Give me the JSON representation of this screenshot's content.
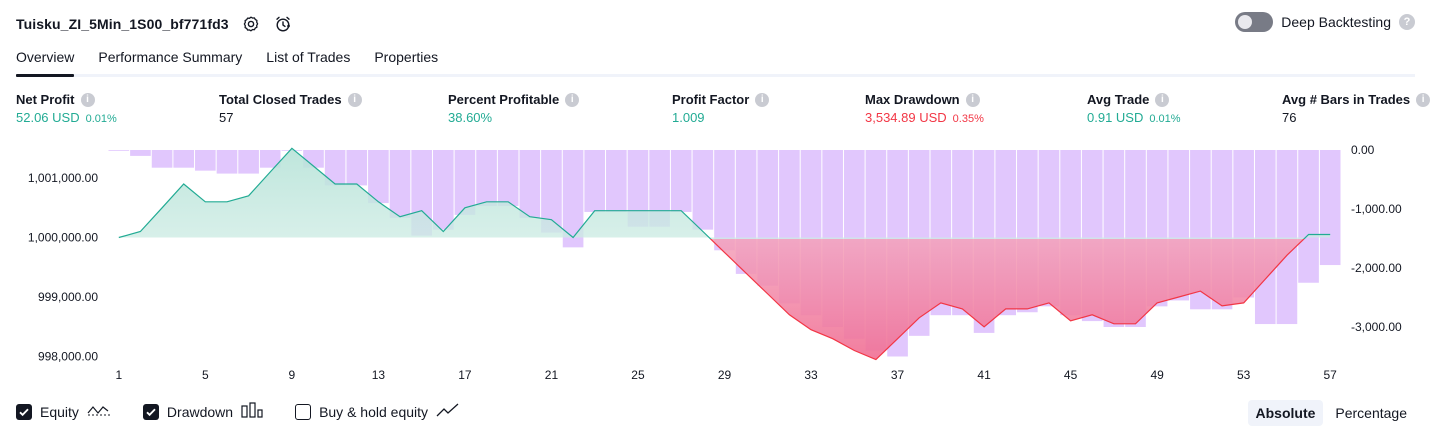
{
  "header": {
    "strategy_name": "Tuisku_ZI_5Min_1S00_bf771fd3",
    "settings_icon": "gear-icon",
    "alert_icon": "alarm-clock-icon"
  },
  "deep_backtesting": {
    "label": "Deep Backtesting",
    "enabled": false,
    "help": "?"
  },
  "tabs": [
    {
      "label": "Overview",
      "active": true
    },
    {
      "label": "Performance Summary",
      "active": false
    },
    {
      "label": "List of Trades",
      "active": false
    },
    {
      "label": "Properties",
      "active": false
    }
  ],
  "stats": {
    "net_profit": {
      "label": "Net Profit",
      "value": "52.06 USD",
      "pct": "0.01%"
    },
    "total_closed_trades": {
      "label": "Total Closed Trades",
      "value": "57"
    },
    "percent_profitable": {
      "label": "Percent Profitable",
      "value": "38.60%"
    },
    "profit_factor": {
      "label": "Profit Factor",
      "value": "1.009"
    },
    "max_drawdown": {
      "label": "Max Drawdown",
      "value": "3,534.89 USD",
      "pct": "0.35%"
    },
    "avg_trade": {
      "label": "Avg Trade",
      "value": "0.91 USD",
      "pct": "0.01%"
    },
    "avg_bars": {
      "label": "Avg # Bars in Trades",
      "value": "76"
    }
  },
  "colors": {
    "profit_green": "#22ab94",
    "loss_red": "#f23645",
    "drawdown_bar": "#e1c7fd",
    "equity_fill_up": "#d8efe9",
    "equity_fill_down": "#f28ca8"
  },
  "chart_data": {
    "type": "area",
    "x_tick_labels": [
      "1",
      "5",
      "9",
      "13",
      "17",
      "21",
      "25",
      "29",
      "33",
      "37",
      "41",
      "45",
      "49",
      "53",
      "57"
    ],
    "left_axis": {
      "ticks": [
        "1,001,000.00",
        "1,000,000.00",
        "999,000.00",
        "998,000.00"
      ],
      "ylim": [
        997750,
        1001500
      ]
    },
    "right_axis": {
      "ticks": [
        "0.00",
        "-1,000.00",
        "-2,000.00",
        "-3,000.00"
      ],
      "ylim": [
        -3550,
        0
      ]
    },
    "series": [
      {
        "key": "equity",
        "values": [
          1000000,
          1000100,
          1000500,
          1000900,
          1000600,
          1000600,
          1000700,
          1001100,
          1001500,
          1001200,
          1000900,
          1000900,
          1000600,
          1000350,
          1000450,
          1000100,
          1000500,
          1000600,
          1000600,
          1000350,
          1000300,
          1000000,
          1000450,
          1000450,
          1000450,
          1000450,
          1000450,
          1000100,
          999750,
          999400,
          999050,
          998700,
          998450,
          998300,
          998100,
          997950,
          998300,
          998650,
          998900,
          998800,
          998500,
          998800,
          998800,
          998900,
          998600,
          998700,
          998550,
          998550,
          998900,
          999000,
          999100,
          998850,
          998900,
          999300,
          999700,
          1000050,
          1000050
        ]
      },
      {
        "key": "drawdown",
        "values": [
          0,
          -100,
          -300,
          -300,
          -350,
          -400,
          -400,
          -300,
          0,
          -300,
          -600,
          -600,
          -900,
          -1150,
          -1450,
          -1350,
          -1100,
          -950,
          -950,
          -1150,
          -1400,
          -1650,
          -1050,
          -1050,
          -1300,
          -1300,
          -1050,
          -1350,
          -1700,
          -2100,
          -2300,
          -2600,
          -2800,
          -3000,
          -3200,
          -3400,
          -3500,
          -3150,
          -2800,
          -2800,
          -3100,
          -2800,
          -2750,
          -2650,
          -2800,
          -2900,
          -3000,
          -3000,
          -2650,
          -2550,
          -2700,
          -2700,
          -2500,
          -2950,
          -2950,
          -2250,
          -1950
        ]
      }
    ]
  },
  "legend": [
    {
      "label": "Equity",
      "checked": true,
      "icon": "equity-line-icon"
    },
    {
      "label": "Drawdown",
      "checked": true,
      "icon": "drawdown-bars-icon"
    },
    {
      "label": "Buy & hold equity",
      "checked": false,
      "icon": "buy-hold-line-icon"
    }
  ],
  "mode": {
    "options": [
      "Absolute",
      "Percentage"
    ],
    "selected": "Absolute"
  }
}
